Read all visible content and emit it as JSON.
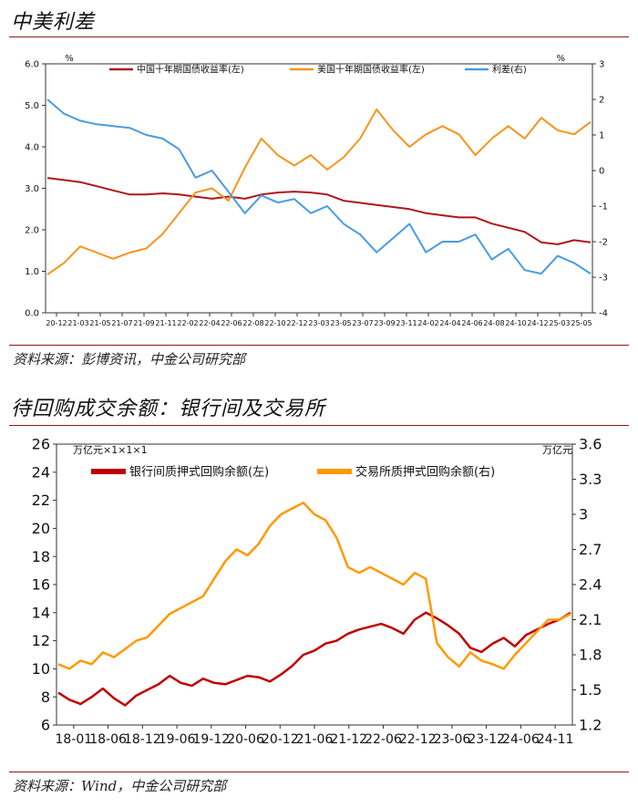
{
  "chart1": {
    "section_title": "中美利差",
    "source": "资料来源：彭博资讯，中金公司研究部",
    "chart_data": {
      "type": "line",
      "left_unit": "%",
      "right_unit": "%",
      "ylim_left": [
        0,
        6
      ],
      "ylim_right": [
        -4,
        3
      ],
      "yticks_left": [
        "0.0",
        "1.0",
        "2.0",
        "3.0",
        "4.0",
        "5.0",
        "6.0"
      ],
      "yticks_right": [
        "-4",
        "-3",
        "-2",
        "-1",
        "0",
        "1",
        "2",
        "3"
      ],
      "xticks": [
        "20-12",
        "21-03",
        "21-05",
        "21-07",
        "21-09",
        "21-11",
        "22-02",
        "22-04",
        "22-06",
        "22-08",
        "22-10",
        "22-12",
        "23-03",
        "23-05",
        "23-07",
        "23-09",
        "23-11",
        "24-02",
        "24-04",
        "24-06",
        "24-08",
        "24-10",
        "24-12",
        "25-03",
        "25-05"
      ],
      "series": [
        {
          "name": "中国十年期国债收益率(左)",
          "color": "#b0161c",
          "axis": "left",
          "values": [
            3.25,
            3.2,
            3.15,
            3.05,
            2.95,
            2.85,
            2.85,
            2.88,
            2.85,
            2.8,
            2.75,
            2.8,
            2.75,
            2.85,
            2.9,
            2.92,
            2.9,
            2.85,
            2.7,
            2.65,
            2.6,
            2.55,
            2.5,
            2.4,
            2.35,
            2.3,
            2.3,
            2.15,
            2.05,
            1.95,
            1.7,
            1.65,
            1.75,
            1.7
          ]
        },
        {
          "name": "美国十年期国债收益率(左)",
          "color": "#f7941d",
          "axis": "left",
          "values": [
            0.92,
            1.2,
            1.6,
            1.45,
            1.3,
            1.45,
            1.55,
            1.9,
            2.4,
            2.9,
            3.0,
            2.7,
            3.5,
            4.2,
            3.8,
            3.55,
            3.8,
            3.45,
            3.75,
            4.2,
            4.9,
            4.4,
            4.0,
            4.3,
            4.5,
            4.3,
            3.8,
            4.2,
            4.5,
            4.2,
            4.7,
            4.4,
            4.3,
            4.6
          ]
        },
        {
          "name": "利差(右)",
          "color": "#4a9be0",
          "axis": "right",
          "values": [
            2.0,
            1.6,
            1.4,
            1.3,
            1.25,
            1.2,
            1.0,
            0.9,
            0.6,
            -0.2,
            0.0,
            -0.6,
            -1.2,
            -0.7,
            -0.9,
            -0.8,
            -1.2,
            -1.0,
            -1.5,
            -1.8,
            -2.3,
            -1.9,
            -1.5,
            -2.3,
            -2.0,
            -2.0,
            -1.8,
            -2.5,
            -2.2,
            -2.8,
            -2.9,
            -2.4,
            -2.6,
            -2.9
          ]
        }
      ]
    }
  },
  "chart2": {
    "section_title": "待回购成交余额：银行间及交易所",
    "source": "资料来源：Wind，中金公司研究部",
    "chart_data": {
      "type": "line",
      "left_unit": "万亿元×1×1×1",
      "right_unit": "万亿元",
      "ylim_left": [
        6,
        26
      ],
      "ylim_right": [
        1.2,
        3.6
      ],
      "yticks_left": [
        "6",
        "8",
        "10",
        "12",
        "14",
        "16",
        "18",
        "20",
        "22",
        "24",
        "26"
      ],
      "yticks_right": [
        "1.2",
        "1.5",
        "1.8",
        "2.1",
        "2.4",
        "2.7",
        "3",
        "3.3",
        "3.6"
      ],
      "xticks": [
        "18-01",
        "18-06",
        "18-12",
        "19-06",
        "19-12",
        "20-06",
        "20-12",
        "21-06",
        "21-12",
        "22-06",
        "22-12",
        "23-06",
        "23-12",
        "24-06",
        "24-11"
      ],
      "series": [
        {
          "name": "银行间质押式回购余额(左)",
          "color": "#c00000",
          "axis": "left",
          "values": [
            8.3,
            7.8,
            7.5,
            8.0,
            8.6,
            7.9,
            7.4,
            8.1,
            8.5,
            8.9,
            9.5,
            9.0,
            8.8,
            9.3,
            9.0,
            8.9,
            9.2,
            9.5,
            9.4,
            9.1,
            9.6,
            10.2,
            11.0,
            11.3,
            11.8,
            12.0,
            12.5,
            12.8,
            13.0,
            13.2,
            12.9,
            12.5,
            13.5,
            14.0,
            13.6,
            13.1,
            12.5,
            11.5,
            11.2,
            11.8,
            12.2,
            11.6,
            12.4,
            12.8,
            13.2,
            13.5,
            14.0
          ]
        },
        {
          "name": "交易所质押式回购余额(右)",
          "color": "#ff9900",
          "axis": "right",
          "values": [
            1.72,
            1.68,
            1.75,
            1.72,
            1.82,
            1.78,
            1.85,
            1.92,
            1.95,
            2.05,
            2.15,
            2.2,
            2.25,
            2.3,
            2.45,
            2.6,
            2.7,
            2.65,
            2.75,
            2.9,
            3.0,
            3.05,
            3.1,
            3.0,
            2.95,
            2.8,
            2.55,
            2.5,
            2.55,
            2.5,
            2.45,
            2.4,
            2.5,
            2.45,
            1.9,
            1.78,
            1.7,
            1.82,
            1.75,
            1.72,
            1.68,
            1.8,
            1.9,
            2.0,
            2.1,
            2.1,
            2.15
          ]
        }
      ]
    }
  }
}
